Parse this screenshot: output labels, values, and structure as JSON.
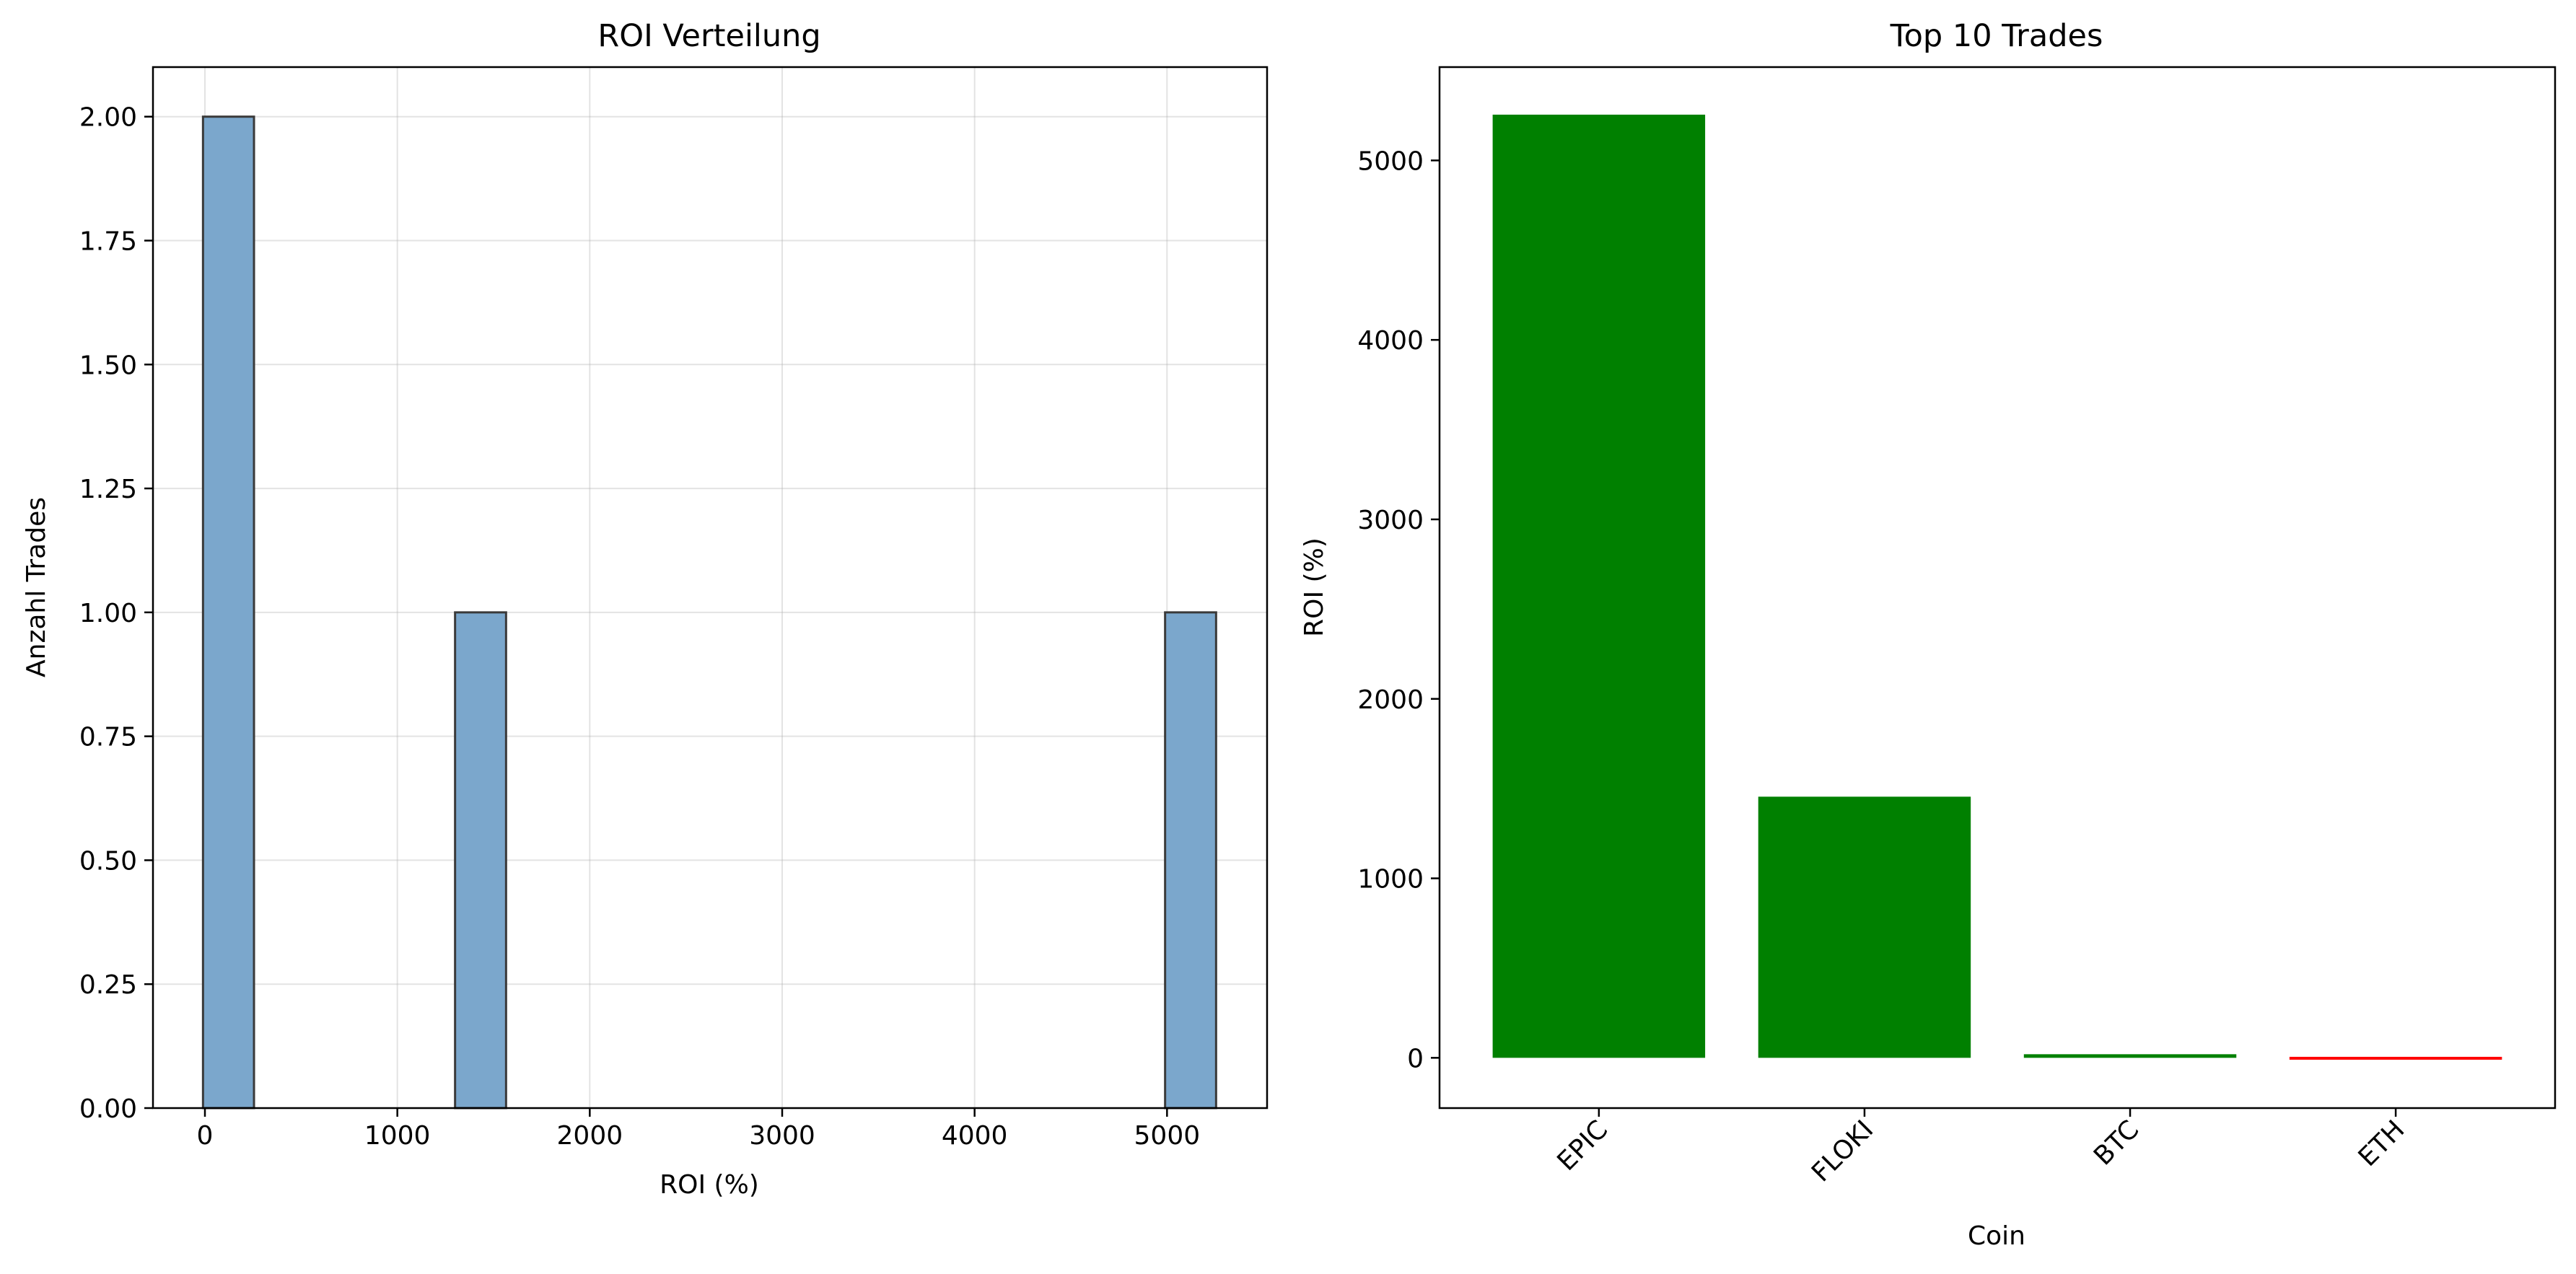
{
  "chart_data": [
    {
      "type": "bar",
      "subtype": "histogram",
      "title": "ROI Verteilung",
      "xlabel": "ROI (%)",
      "ylabel": "Anzahl Trades",
      "xlim": [
        -270,
        5520
      ],
      "ylim": [
        0,
        2.1
      ],
      "xticks": [
        "0",
        "1000",
        "2000",
        "3000",
        "4000",
        "5000"
      ],
      "yticks": [
        "0.00",
        "0.25",
        "0.50",
        "0.75",
        "1.00",
        "1.25",
        "1.50",
        "1.75",
        "2.00"
      ],
      "bins": [
        {
          "x0": -10,
          "x1": 255,
          "count": 2
        },
        {
          "x0": 1300,
          "x1": 1565,
          "count": 1
        },
        {
          "x0": 4990,
          "x1": 5255,
          "count": 1
        }
      ],
      "bar_color": "#7ba7cc",
      "edge_color": "#3a3a3a",
      "grid": true
    },
    {
      "type": "bar",
      "title": "Top 10 Trades",
      "xlabel": "Coin",
      "ylabel": "ROI (%)",
      "categories": [
        "EPIC",
        "FLOKI",
        "BTC",
        "ETH"
      ],
      "values": [
        5255,
        1455,
        20,
        -5
      ],
      "colors": [
        "#008000",
        "#008000",
        "#008000",
        "#ff0000"
      ],
      "ylim": [
        -280,
        5520
      ],
      "yticks": [
        "0",
        "1000",
        "2000",
        "3000",
        "4000",
        "5000"
      ],
      "grid": false
    }
  ]
}
